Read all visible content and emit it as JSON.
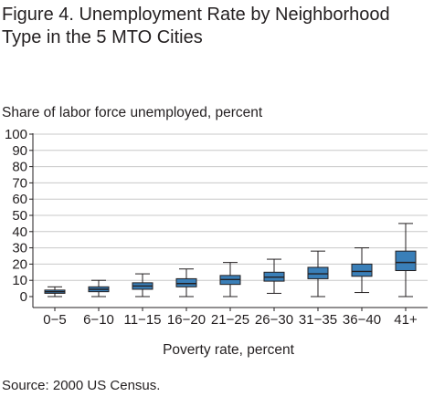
{
  "title": "Figure 4. Unemployment Rate by Neighborhood Type in the 5 MTO Cities",
  "source": "Source: 2000 US Census.",
  "colors": {
    "box_fill": "#3a7fb8",
    "box_stroke": "#231f20",
    "grid": "#c8c8c8"
  },
  "chart_data": {
    "type": "box",
    "title": "Figure 4. Unemployment Rate by Neighborhood Type in the 5 MTO Cities",
    "ylabel": "Share of labor force unemployed, percent",
    "xlabel": "Poverty rate, percent",
    "ylim": [
      0,
      100
    ],
    "yticks": [
      0,
      10,
      20,
      30,
      40,
      50,
      60,
      70,
      80,
      90,
      100
    ],
    "grid": true,
    "categories": [
      "0−5",
      "6−10",
      "11−15",
      "16−20",
      "21−25",
      "26−30",
      "31−35",
      "36−40",
      "41+"
    ],
    "boxes": [
      {
        "min": 0,
        "q1": 2,
        "median": 3,
        "q3": 4,
        "max": 6
      },
      {
        "min": 0,
        "q1": 3,
        "median": 4.5,
        "q3": 6,
        "max": 10
      },
      {
        "min": 0,
        "q1": 4.5,
        "median": 6.5,
        "q3": 8.5,
        "max": 14
      },
      {
        "min": 0,
        "q1": 6,
        "median": 8,
        "q3": 11,
        "max": 17
      },
      {
        "min": 0,
        "q1": 7.5,
        "median": 10.5,
        "q3": 13,
        "max": 21
      },
      {
        "min": 2,
        "q1": 9.5,
        "median": 12,
        "q3": 15,
        "max": 23
      },
      {
        "min": 0,
        "q1": 11,
        "median": 14,
        "q3": 18,
        "max": 28
      },
      {
        "min": 2.5,
        "q1": 12.5,
        "median": 15.5,
        "q3": 20,
        "max": 30
      },
      {
        "min": 0,
        "q1": 16,
        "median": 21,
        "q3": 28,
        "max": 45
      }
    ]
  }
}
